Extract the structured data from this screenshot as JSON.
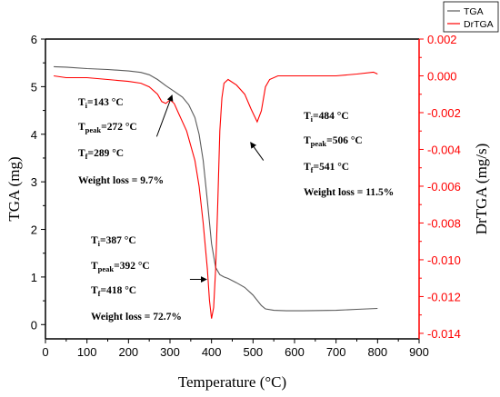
{
  "chart_data": {
    "type": "line",
    "xlabel": "Temperature (°C)",
    "ylabel": "TGA (mg)",
    "y2label": "DrTGA (mg/s)",
    "xlim": [
      0,
      900
    ],
    "ylim": [
      -0.3,
      6
    ],
    "y2lim": [
      -0.0143,
      0.002
    ],
    "xticks": [
      "0",
      "100",
      "200",
      "300",
      "400",
      "500",
      "600",
      "700",
      "800",
      "900"
    ],
    "yticks": [
      "0",
      "1",
      "2",
      "3",
      "4",
      "5",
      "6"
    ],
    "y2ticks": [
      "0.002",
      "0.000",
      "-0.002",
      "-0.004",
      "-0.006",
      "-0.008",
      "-0.010",
      "-0.012",
      "-0.014"
    ],
    "legend": {
      "position": "top-right",
      "entries": [
        "TGA",
        "DrTGA"
      ]
    },
    "series": [
      {
        "name": "TGA",
        "color": "#5a5a5a",
        "axis": "left",
        "x": [
          20,
          50,
          100,
          150,
          200,
          230,
          250,
          270,
          290,
          310,
          330,
          345,
          360,
          370,
          380,
          390,
          400,
          410,
          420,
          430,
          440,
          460,
          480,
          500,
          520,
          530,
          550,
          580,
          620,
          700,
          750,
          800
        ],
        "y": [
          5.42,
          5.41,
          5.38,
          5.36,
          5.33,
          5.3,
          5.25,
          5.15,
          5.02,
          4.9,
          4.78,
          4.62,
          4.35,
          4.0,
          3.45,
          2.6,
          1.7,
          1.2,
          1.05,
          1.0,
          0.97,
          0.88,
          0.78,
          0.62,
          0.4,
          0.33,
          0.3,
          0.29,
          0.29,
          0.3,
          0.32,
          0.34
        ]
      },
      {
        "name": "DrTGA",
        "color": "#ff0000",
        "axis": "right",
        "x": [
          20,
          50,
          100,
          150,
          200,
          230,
          250,
          270,
          280,
          290,
          300,
          310,
          320,
          340,
          360,
          370,
          380,
          390,
          395,
          400,
          405,
          410,
          415,
          420,
          425,
          430,
          440,
          460,
          480,
          495,
          510,
          520,
          530,
          540,
          560,
          600,
          650,
          700,
          750,
          790,
          800
        ],
        "y": [
          0.0,
          -0.0001,
          -0.0001,
          -0.0002,
          -0.0003,
          -0.0004,
          -0.0006,
          -0.001,
          -0.0014,
          -0.0015,
          -0.0013,
          -0.0015,
          -0.002,
          -0.003,
          -0.0046,
          -0.006,
          -0.008,
          -0.0105,
          -0.0122,
          -0.0132,
          -0.0126,
          -0.0105,
          -0.007,
          -0.003,
          -0.0012,
          -0.0004,
          -0.0002,
          -0.0005,
          -0.001,
          -0.0018,
          -0.0025,
          -0.0019,
          -0.0006,
          -0.0002,
          0.0,
          0.0,
          0.0,
          0.0,
          0.0001,
          0.0002,
          0.0001
        ]
      }
    ],
    "annotations": [
      {
        "lines": [
          {
            "base": "T",
            "sub": "i",
            "rest": "=143 °C"
          },
          {
            "base": "T",
            "sub": "peak",
            "rest": "=272 °C"
          },
          {
            "base": "T",
            "sub": "f",
            "rest": "=289 °C"
          },
          {
            "base": "Weight loss = 9.7%",
            "sub": "",
            "rest": ""
          }
        ]
      },
      {
        "lines": [
          {
            "base": "T",
            "sub": "i",
            "rest": "=484 °C"
          },
          {
            "base": "T",
            "sub": "peak",
            "rest": "=506 °C"
          },
          {
            "base": "T",
            "sub": "f",
            "rest": "=541 °C"
          },
          {
            "base": "Weight loss = 11.5%",
            "sub": "",
            "rest": ""
          }
        ]
      },
      {
        "lines": [
          {
            "base": "T",
            "sub": "i",
            "rest": "=387 °C"
          },
          {
            "base": "T",
            "sub": "peak",
            "rest": "=392 °C"
          },
          {
            "base": "T",
            "sub": "f",
            "rest": "=418 °C"
          },
          {
            "base": "Weight loss = 72.7%",
            "sub": "",
            "rest": ""
          }
        ]
      }
    ]
  }
}
